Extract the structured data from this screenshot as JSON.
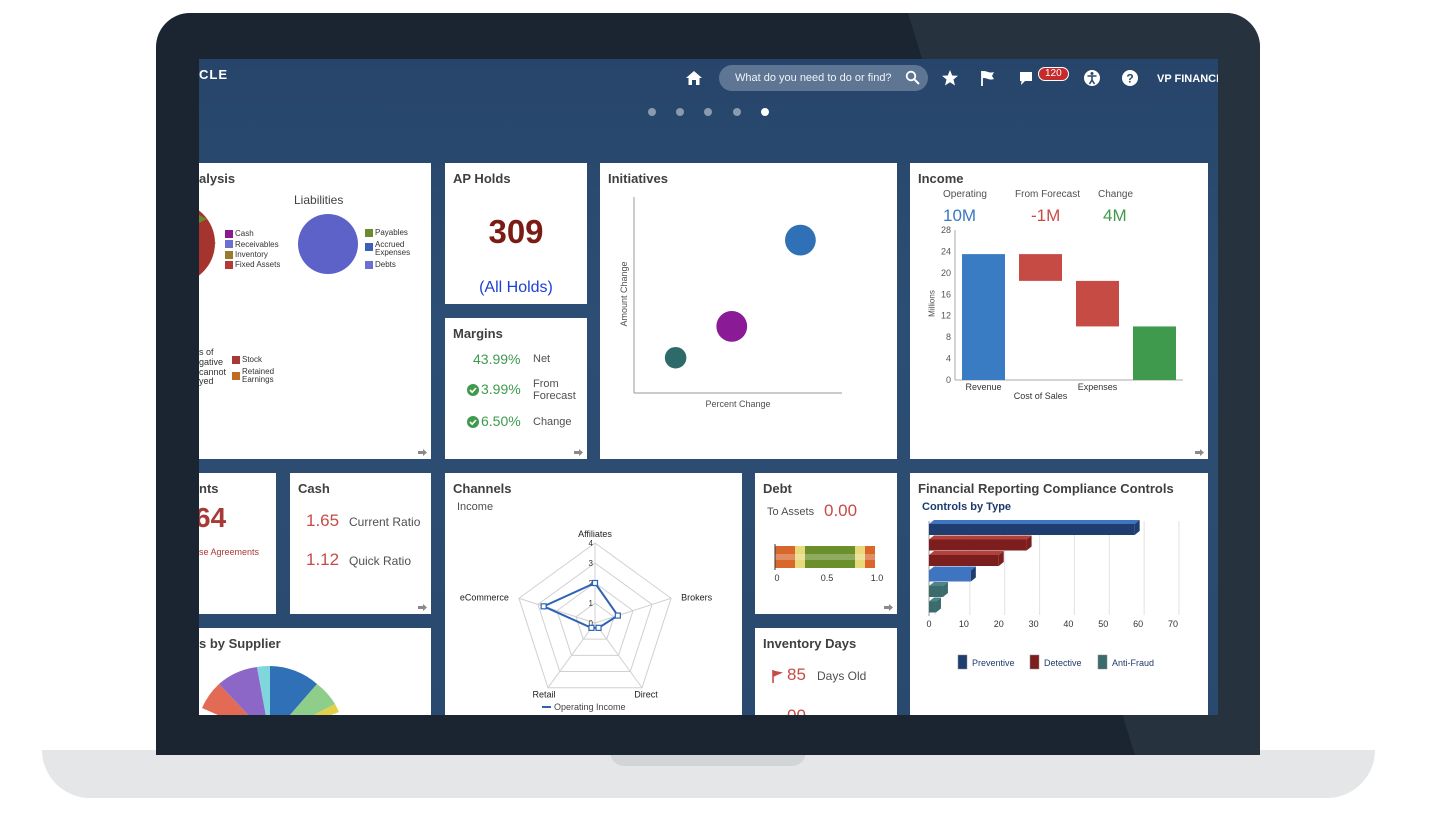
{
  "header": {
    "brand_fragment": "CLE",
    "search_placeholder": "What do you need to do or find?",
    "notification_count": "120",
    "user_label": "VP FINANCE",
    "page_dots": 5,
    "active_dot": 5
  },
  "colors": {
    "screen_bg": "#2a496e",
    "accent_blue": "#3a78c2",
    "negative_red": "#c74b45",
    "positive_green": "#3f9a4e",
    "holds_red": "#7b1c14",
    "link_blue": "#1c3fd6"
  },
  "analysis": {
    "title_fragment": "alysis",
    "liabilities_label": "Liabilities",
    "assets_legend": [
      "Cash",
      "Receivables",
      "Inventory",
      "Fixed Assets"
    ],
    "liabilities_legend": [
      "Payables",
      "Accrued Expenses",
      "Debts"
    ],
    "equity_note_lines": [
      "s of",
      "gative",
      "cannot",
      "yed"
    ],
    "equity_legend": [
      "Stock",
      "Retained Earnings"
    ]
  },
  "ap_holds": {
    "title": "AP Holds",
    "value": "309",
    "link": "(All Holds)"
  },
  "margins": {
    "title": "Margins",
    "rows": [
      {
        "value": "43.99%",
        "label": "Net",
        "check": false
      },
      {
        "value": "3.99%",
        "label": "From Forecast",
        "check": true
      },
      {
        "value": "6.50%",
        "label": "Change",
        "check": true
      }
    ]
  },
  "initiatives": {
    "title": "Initiatives",
    "ylabel": "Amount Change",
    "xlabel": "Percent Change"
  },
  "income": {
    "title": "Income",
    "kpis": [
      {
        "label": "Operating",
        "value": "10M"
      },
      {
        "label": "From Forecast",
        "value": "-1M"
      },
      {
        "label": "Change",
        "value": "4M"
      }
    ],
    "ylabel": "Millions"
  },
  "agreements": {
    "title_fragment": "nts",
    "value_fragment": "64",
    "link_fragment": "se Agreements"
  },
  "cash": {
    "title": "Cash",
    "rows": [
      {
        "value": "1.65",
        "label": "Current Ratio"
      },
      {
        "value": "1.12",
        "label": "Quick Ratio"
      }
    ]
  },
  "channels": {
    "title": "Channels",
    "subtitle": "Income"
  },
  "debt": {
    "title": "Debt",
    "label": "To Assets",
    "value": "0.00",
    "bar_ticks": [
      "0",
      "0.5",
      "1.0"
    ]
  },
  "compliance": {
    "title": "Financial Reporting Compliance Controls",
    "subtitle": "Controls by Type"
  },
  "supplier": {
    "title_fragment": "s by Supplier"
  },
  "inventory": {
    "title": "Inventory Days",
    "value": "85",
    "label": "Days Old",
    "value2_fragment": "00"
  },
  "chart_data": [
    {
      "chart_id": "initiatives",
      "type": "scatter",
      "title": "Initiatives",
      "xlabel": "Percent Change",
      "ylabel": "Amount Change",
      "points": [
        {
          "x": 0.2,
          "y": 0.18,
          "size": 0.35,
          "color": "#2f6a6a"
        },
        {
          "x": 0.47,
          "y": 0.34,
          "size": 0.5,
          "color": "#8a1a96"
        },
        {
          "x": 0.8,
          "y": 0.78,
          "size": 0.5,
          "color": "#2f70b6"
        }
      ]
    },
    {
      "chart_id": "income",
      "type": "bar",
      "title": "Income",
      "ylabel": "Millions",
      "categories": [
        "Revenue",
        "Cost of Sales",
        "Expenses",
        ""
      ],
      "bars": [
        {
          "from": 0,
          "to": 23.5,
          "color": "#3a7cc4"
        },
        {
          "from": 18.5,
          "to": 23.5,
          "color": "#c74b45"
        },
        {
          "from": 10,
          "to": 18.5,
          "color": "#c74b45"
        },
        {
          "from": 0,
          "to": 10,
          "color": "#3f9a4e"
        }
      ],
      "yticks": [
        "0",
        "4",
        "8",
        "12",
        "16",
        "20",
        "24",
        "28"
      ],
      "ylim": [
        0,
        28
      ]
    },
    {
      "chart_id": "channels",
      "type": "radar",
      "axes": [
        "Affiliates",
        "Brokers",
        "Direct",
        "Retail",
        "eCommerce"
      ],
      "rticks": [
        "0",
        "1",
        "2",
        "3",
        "4"
      ],
      "rmax": 4,
      "series": [
        {
          "name": "Operating Income",
          "values": [
            2,
            1.2,
            0.3,
            0.3,
            2.7
          ]
        }
      ]
    },
    {
      "chart_id": "compliance",
      "type": "bar",
      "orientation": "horizontal",
      "title": "Controls by Type",
      "xticks": [
        "0",
        "10",
        "20",
        "30",
        "40",
        "50",
        "60",
        "70"
      ],
      "xlim": [
        0,
        70
      ],
      "legend": [
        "Preventive",
        "Detective",
        "Anti-Fraud"
      ],
      "bars": [
        {
          "value": 59,
          "series": "Preventive"
        },
        {
          "value": 28,
          "series": "Detective"
        },
        {
          "value": 20,
          "series": "Detective"
        },
        {
          "value": 12,
          "series": "Preventive"
        },
        {
          "value": 4,
          "series": "Anti-Fraud"
        },
        {
          "value": 2,
          "series": "Anti-Fraud"
        }
      ]
    },
    {
      "chart_id": "debt",
      "type": "gauge-bar",
      "value": 0.0,
      "range": [
        0,
        1.0
      ],
      "ticks": [
        "0",
        "0.5",
        "1.0"
      ]
    }
  ]
}
